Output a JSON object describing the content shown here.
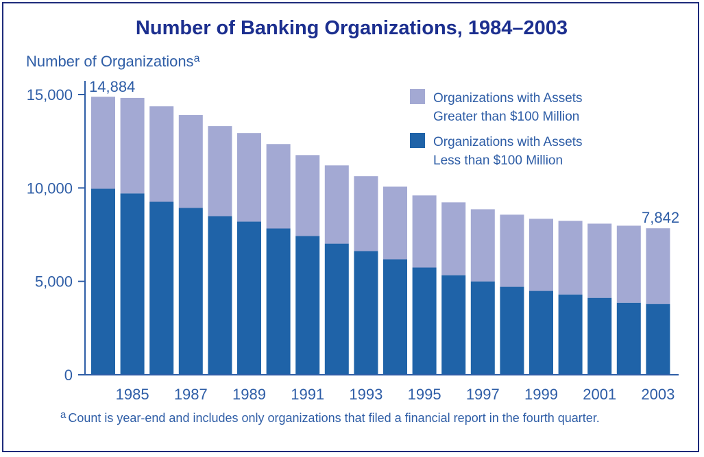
{
  "chart_data": {
    "type": "bar",
    "stacked": true,
    "title": "Number of Banking Organizations, 1984–2003",
    "ylabel": "Number of Organizations",
    "ylabel_superscript": "a",
    "xlabel": "",
    "ylim": [
      0,
      15000
    ],
    "yticks": [
      "0",
      "5,000",
      "10,000",
      "15,000"
    ],
    "ytick_values": [
      0,
      5000,
      10000,
      15000
    ],
    "categories": [
      1984,
      1985,
      1986,
      1987,
      1988,
      1989,
      1990,
      1991,
      1992,
      1993,
      1994,
      1995,
      1996,
      1997,
      1998,
      1999,
      2000,
      2001,
      2002,
      2003
    ],
    "xtick_labels": [
      "1985",
      "1987",
      "1989",
      "1991",
      "1993",
      "1995",
      "1997",
      "1999",
      "2001",
      "2003"
    ],
    "series": [
      {
        "name": "Organizations with Assets Less than $100 Million",
        "legend_lines": [
          "Organizations with Assets",
          "Less than $100 Million"
        ],
        "color": "#1f63a8",
        "values": [
          9960,
          9710,
          9260,
          8930,
          8490,
          8200,
          7830,
          7430,
          7020,
          6620,
          6180,
          5740,
          5330,
          5000,
          4710,
          4490,
          4300,
          4120,
          3860,
          3790
        ]
      },
      {
        "name": "Organizations with Assets Greater than $100 Million",
        "legend_lines": [
          "Organizations with Assets",
          "Greater than $100 Million"
        ],
        "color": "#a3a9d3",
        "values": [
          4924,
          5110,
          5110,
          4970,
          4820,
          4740,
          4520,
          4330,
          4190,
          4010,
          3890,
          3860,
          3900,
          3860,
          3860,
          3860,
          3940,
          3970,
          4120,
          4052
        ]
      }
    ],
    "totals": [
      14884,
      14820,
      14370,
      13900,
      13310,
      12940,
      12350,
      11760,
      11210,
      10630,
      10070,
      9600,
      9230,
      8860,
      8570,
      8350,
      8240,
      8090,
      7980,
      7842
    ],
    "data_labels": {
      "first": "14,884",
      "last": "7,842"
    },
    "legend_position": "top-right",
    "grid": false,
    "footnote_marker": "a",
    "footnote": "Count is year-end and includes only organizations that filed a financial report in the fourth quarter."
  }
}
